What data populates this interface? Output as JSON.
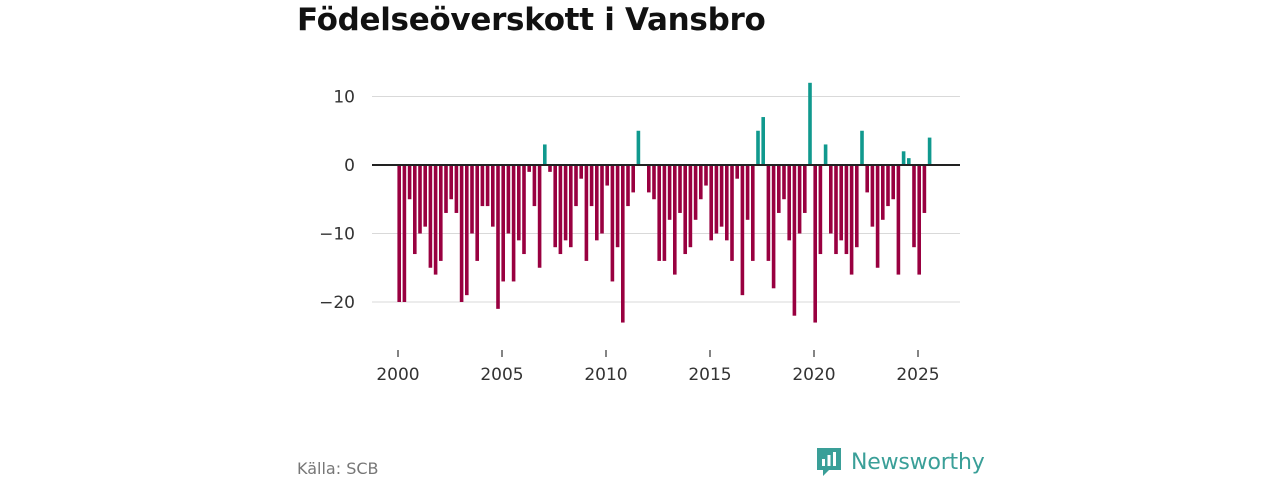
{
  "title": "Födelseöverskott i Vansbro",
  "source": "Källa: SCB",
  "brand": "Newsworthy",
  "colors": {
    "positive": "#10998e",
    "negative": "#990040",
    "grid": "#d9d9d9",
    "zero": "#222222",
    "brand": "#3a9f98"
  },
  "chart_data": {
    "type": "bar",
    "title": "Födelseöverskott i Vansbro",
    "xlabel": "",
    "ylabel": "",
    "frequency": "quarterly",
    "start": "2000-Q1",
    "ylim": [
      -25,
      13
    ],
    "yticks": [
      10,
      0,
      -10,
      -20
    ],
    "ytick_labels": [
      "10",
      "0",
      "−10",
      "−20"
    ],
    "xticks": [
      2000,
      2005,
      2010,
      2015,
      2020,
      2025
    ],
    "xtick_labels": [
      "2000",
      "2005",
      "2010",
      "2015",
      "2020",
      "2025"
    ],
    "values": [
      -20,
      -20,
      -5,
      -13,
      -10,
      -9,
      -15,
      -16,
      -14,
      -7,
      -5,
      -7,
      -20,
      -19,
      -10,
      -14,
      -6,
      -6,
      -9,
      -21,
      -17,
      -10,
      -17,
      -11,
      -13,
      -1,
      -6,
      -15,
      3,
      -1,
      -12,
      -13,
      -11,
      -12,
      -6,
      -2,
      -14,
      -6,
      -11,
      -10,
      -3,
      -17,
      -12,
      -23,
      -6,
      -4,
      5,
      0,
      -4,
      -5,
      -14,
      -14,
      -8,
      -16,
      -7,
      -13,
      -12,
      -8,
      -5,
      -3,
      -11,
      -10,
      -9,
      -11,
      -14,
      -2,
      -19,
      -8,
      -14,
      5,
      7,
      -14,
      -18,
      -7,
      -5,
      -11,
      -22,
      -10,
      -7,
      12,
      -23,
      -13,
      3,
      -10,
      -13,
      -11,
      -13,
      -16,
      -12,
      5,
      -4,
      -9,
      -15,
      -8,
      -6,
      -5,
      -16,
      2,
      1,
      -12,
      -16,
      -7,
      4
    ]
  }
}
